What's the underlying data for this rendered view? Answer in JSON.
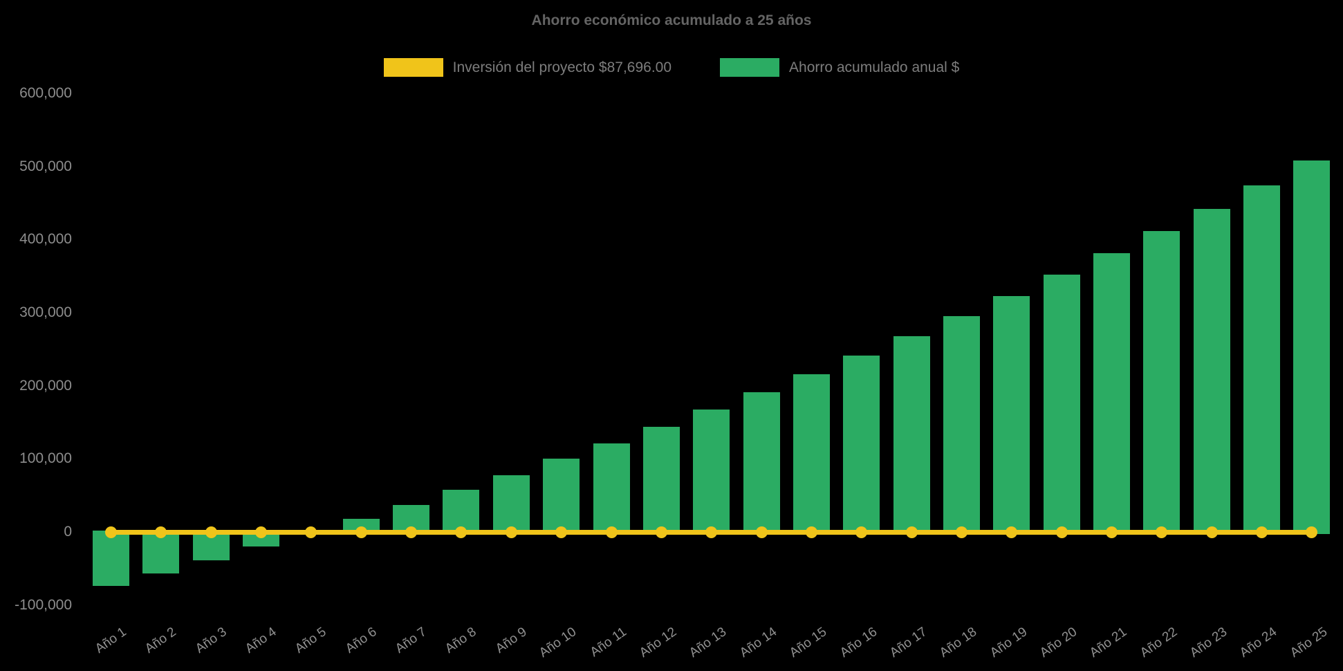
{
  "title": "Ahorro económico acumulado a 25 años",
  "legend": {
    "items": [
      {
        "id": "investment-line",
        "label": "Inversión del proyecto $87,696.00",
        "color": "#F0C41A"
      },
      {
        "id": "savings-bars",
        "label": "Ahorro acumulado anual $",
        "color": "#2BAC63"
      }
    ]
  },
  "chart_data": {
    "type": "bar",
    "title": "Ahorro económico acumulado a 25 años",
    "background": "#000000",
    "text_color": "#8d8d8d",
    "grid": false,
    "legend_position": "top",
    "investment_amount": 87696.0,
    "categories": [
      "Año 1",
      "Año 2",
      "Año 3",
      "Año 4",
      "Año 5",
      "Año 6",
      "Año 7",
      "Año 8",
      "Año 9",
      "Año 10",
      "Año 11",
      "Año 12",
      "Año 13",
      "Año 14",
      "Año 15",
      "Año 16",
      "Año 17",
      "Año 18",
      "Año 19",
      "Año 20",
      "Año 21",
      "Año 22",
      "Año 23",
      "Año 24",
      "Año 25"
    ],
    "series": [
      {
        "name": "Ahorro acumulado anual $",
        "type": "bar",
        "color": "#2BAC63",
        "values": [
          -74000,
          -57000,
          -38500,
          -19500,
          0,
          18000,
          37000,
          57500,
          78000,
          100000,
          121500,
          144000,
          167500,
          191500,
          216000,
          241500,
          267500,
          295000,
          323000,
          351500,
          381500,
          411500,
          442000,
          474000,
          508500
        ]
      },
      {
        "name": "Inversión del proyecto $87,696.00",
        "type": "line",
        "color": "#F0C41A",
        "values": [
          0,
          0,
          0,
          0,
          0,
          0,
          0,
          0,
          0,
          0,
          0,
          0,
          0,
          0,
          0,
          0,
          0,
          0,
          0,
          0,
          0,
          0,
          0,
          0,
          0
        ],
        "note": "flat payback threshold line with point markers at every year"
      }
    ],
    "ylim": [
      -100000,
      600000
    ],
    "ytick_step": 100000,
    "yticks": [
      {
        "value": 600000,
        "label": "600,000"
      },
      {
        "value": 500000,
        "label": "500,000"
      },
      {
        "value": 400000,
        "label": "400,000"
      },
      {
        "value": 300000,
        "label": "300,000"
      },
      {
        "value": 200000,
        "label": "200,000"
      },
      {
        "value": 100000,
        "label": "100,000"
      },
      {
        "value": 0,
        "label": "0"
      },
      {
        "value": -100000,
        "label": "-100,000"
      }
    ]
  }
}
